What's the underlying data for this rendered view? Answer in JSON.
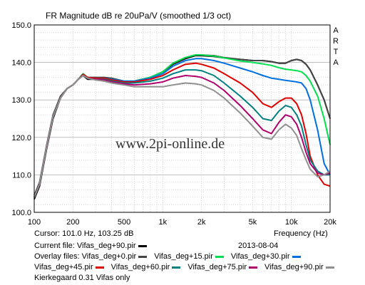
{
  "chart_data": {
    "type": "line",
    "title": "FR Magnitude dB re 20uPa/V (smoothed 1/3 oct)",
    "xlabel": "Frequency (Hz)",
    "ylabel": "",
    "xscale": "log",
    "xlim": [
      100,
      20000
    ],
    "ylim": [
      100,
      150
    ],
    "yticks": [
      100,
      110,
      120,
      130,
      140,
      150
    ],
    "ytick_labels": [
      "100.0",
      "110.0",
      "120.0",
      "130.0",
      "140.0",
      "150.0"
    ],
    "xticks": [
      100,
      200,
      500,
      1000,
      2000,
      5000,
      10000,
      20000
    ],
    "xtick_labels": [
      "100",
      "200",
      "500",
      "1k",
      "2k",
      "5k",
      "10k",
      "20k"
    ],
    "grid": true,
    "watermark": "www.2pi-online.de",
    "brand": "ARTA",
    "series": [
      {
        "name": "Vifas_deg+90.pir",
        "color": "#000000",
        "x": [
          100,
          110,
          125,
          140,
          160,
          180,
          200,
          220,
          240,
          260,
          300,
          350,
          400,
          500,
          600,
          800,
          1000,
          1200,
          1500,
          1800,
          2000,
          2500,
          3000,
          4000,
          5000,
          6000,
          7000,
          8000,
          9000,
          10000,
          11000,
          12000,
          13000,
          14000,
          16000,
          18000,
          20000
        ],
        "y": [
          103.5,
          107,
          117,
          125,
          130.5,
          133,
          134,
          135.5,
          136.5,
          135.5,
          135.5,
          135.5,
          135,
          134.5,
          135,
          136,
          137.5,
          139.5,
          141,
          141.8,
          141.8,
          141.6,
          141.2,
          140.8,
          140.5,
          140.5,
          140.2,
          139.8,
          139.8,
          140.5,
          140.8,
          140.5,
          139.5,
          138,
          134,
          130,
          125
        ]
      },
      {
        "name": "Vifas_deg+0.pir",
        "color": "#444444",
        "x": [
          100,
          110,
          125,
          140,
          160,
          180,
          200,
          220,
          240,
          260,
          300,
          350,
          400,
          500,
          600,
          800,
          1000,
          1200,
          1500,
          1800,
          2000,
          2500,
          3000,
          4000,
          5000,
          6000,
          7000,
          8000,
          9000,
          10000,
          11000,
          12000,
          13000,
          14000,
          16000,
          18000,
          20000
        ],
        "y": [
          104.5,
          108,
          118,
          126,
          131,
          133,
          134,
          135.5,
          137,
          136,
          136,
          136,
          135.8,
          135,
          135,
          136,
          137.5,
          139.8,
          141.3,
          142,
          142,
          141.8,
          141.3,
          140.8,
          140.5,
          140.5,
          140.2,
          139.8,
          139.8,
          140.5,
          140.8,
          140.5,
          139.5,
          138,
          134,
          130,
          125
        ]
      },
      {
        "name": "Vifas_deg+15.pir",
        "color": "#00e050",
        "x": [
          100,
          110,
          125,
          140,
          160,
          180,
          200,
          220,
          240,
          260,
          300,
          350,
          400,
          500,
          600,
          800,
          1000,
          1200,
          1500,
          1800,
          2000,
          2500,
          3000,
          4000,
          5000,
          6000,
          7000,
          8000,
          9000,
          10000,
          11000,
          12000,
          13000,
          14000,
          16000,
          18000,
          20000
        ],
        "y": [
          104,
          107.5,
          117.5,
          125.5,
          130.5,
          133,
          134,
          135.5,
          137,
          136,
          135.8,
          135.8,
          135.5,
          135,
          135,
          136,
          137.5,
          139.8,
          141.3,
          142,
          142,
          141.7,
          141.2,
          140.4,
          140,
          139.6,
          139.2,
          138.6,
          138.2,
          138,
          137.8,
          137.5,
          136.5,
          135,
          131,
          125,
          118
        ]
      },
      {
        "name": "Vifas_deg+30.pir",
        "color": "#0070e0",
        "x": [
          100,
          110,
          125,
          140,
          160,
          180,
          200,
          220,
          240,
          260,
          300,
          350,
          400,
          500,
          600,
          800,
          1000,
          1200,
          1500,
          1800,
          2000,
          2500,
          3000,
          4000,
          5000,
          6000,
          7000,
          8000,
          9000,
          10000,
          11000,
          12000,
          13000,
          14000,
          16000,
          18000,
          20000
        ],
        "y": [
          104,
          107.5,
          117.5,
          125.5,
          130.5,
          133,
          134,
          135.5,
          136.8,
          136,
          135.8,
          135.8,
          135.5,
          135,
          135,
          135.8,
          137,
          139,
          140.5,
          141,
          141,
          140.5,
          139.8,
          138.5,
          137.5,
          136.5,
          135.8,
          135.5,
          135.2,
          135,
          134.8,
          134.5,
          133,
          130,
          122,
          113,
          110
        ]
      },
      {
        "name": "Vifas_deg+45.pir",
        "color": "#e00000",
        "x": [
          100,
          110,
          125,
          140,
          160,
          180,
          200,
          220,
          240,
          260,
          300,
          350,
          400,
          500,
          600,
          800,
          1000,
          1200,
          1500,
          1800,
          2000,
          2500,
          3000,
          4000,
          5000,
          6000,
          7000,
          8000,
          9000,
          10000,
          11000,
          12000,
          13000,
          14000,
          16000,
          18000,
          20000
        ],
        "y": [
          104,
          107.5,
          117.5,
          125.5,
          130.5,
          133,
          134,
          135.5,
          136.8,
          136,
          135.8,
          135.8,
          135.3,
          134.8,
          134.8,
          135.5,
          136.5,
          138,
          139.5,
          139.8,
          139.5,
          138.5,
          137,
          134.5,
          132,
          129,
          128,
          129.5,
          130.5,
          130.5,
          129,
          126,
          121,
          115,
          110,
          107.5,
          107
        ]
      },
      {
        "name": "Vifas_deg+60.pir",
        "color": "#008080",
        "x": [
          100,
          110,
          125,
          140,
          160,
          180,
          200,
          220,
          240,
          260,
          300,
          350,
          400,
          500,
          600,
          800,
          1000,
          1200,
          1500,
          1800,
          2000,
          2500,
          3000,
          4000,
          5000,
          6000,
          7000,
          8000,
          9000,
          10000,
          11000,
          12000,
          13000,
          14000,
          16000,
          18000,
          20000
        ],
        "y": [
          104,
          107.5,
          117.5,
          125.5,
          130.5,
          133,
          134,
          135.5,
          136.5,
          135.8,
          135.5,
          135.5,
          135,
          134.5,
          134.5,
          135,
          135.8,
          137,
          138,
          138,
          137.8,
          136.5,
          134.5,
          131,
          128,
          125,
          124.5,
          127,
          128.5,
          128,
          126,
          123,
          118,
          114,
          111,
          110,
          110
        ]
      },
      {
        "name": "Vifas_deg+75.pir",
        "color": "#b0006f",
        "x": [
          100,
          110,
          125,
          140,
          160,
          180,
          200,
          220,
          240,
          260,
          300,
          350,
          400,
          500,
          600,
          800,
          1000,
          1200,
          1500,
          1800,
          2000,
          2500,
          3000,
          4000,
          5000,
          6000,
          7000,
          8000,
          9000,
          10000,
          11000,
          12000,
          13000,
          14000,
          16000,
          18000,
          20000
        ],
        "y": [
          104,
          107.5,
          117.5,
          125.5,
          130.5,
          133,
          134,
          135.5,
          136.5,
          135.8,
          135.5,
          135.3,
          134.8,
          134.3,
          134,
          134.3,
          134.8,
          135.8,
          136.5,
          136.3,
          136,
          134.5,
          132.5,
          128.5,
          125,
          122,
          121,
          124,
          126,
          125.5,
          123.5,
          120,
          116,
          113,
          110.5,
          110,
          110.5
        ]
      },
      {
        "name": "Vifas_deg+90.pir",
        "color": "#909090",
        "x": [
          100,
          110,
          125,
          140,
          160,
          180,
          200,
          220,
          240,
          260,
          300,
          350,
          400,
          500,
          600,
          800,
          1000,
          1200,
          1500,
          1800,
          2000,
          2500,
          3000,
          4000,
          5000,
          6000,
          7000,
          8000,
          9000,
          10000,
          11000,
          12000,
          13000,
          14000,
          16000,
          18000,
          20000
        ],
        "y": [
          104,
          107.5,
          117.5,
          125.5,
          130.5,
          133,
          134,
          135.5,
          136.5,
          135.8,
          135.3,
          135,
          134.5,
          134,
          133.5,
          133.5,
          133.5,
          134,
          134.5,
          134.3,
          134,
          132.5,
          130.5,
          126.5,
          123,
          120,
          119.5,
          122,
          123.5,
          122.5,
          120.5,
          117,
          114,
          111.5,
          109.5,
          110,
          111
        ]
      }
    ]
  },
  "readout": {
    "cursor": "Cursor: 101.0 Hz, 103.25 dB",
    "current_file": "Current file: Vifas_deg+90.pir",
    "date": "2013-08-04",
    "overlay_label": "Overlay files:",
    "overlays": [
      {
        "label": "Vifas_deg+0.pir",
        "color": "#444444"
      },
      {
        "label": "Vifas_deg+15.pir",
        "color": "#00e050"
      },
      {
        "label": "Vifas_deg+30.pir",
        "color": "#0070e0"
      },
      {
        "label": "Vifas_deg+45.pir",
        "color": "#e00000"
      },
      {
        "label": "Vifas_deg+60.pir",
        "color": "#008080"
      },
      {
        "label": "Vifas_deg+75.pir",
        "color": "#b0006f"
      },
      {
        "label": "Vifas_deg+90.pir",
        "color": "#909090"
      }
    ],
    "current_color": "#000000",
    "note": "Kierkegaard 0.31 Vifas only"
  }
}
